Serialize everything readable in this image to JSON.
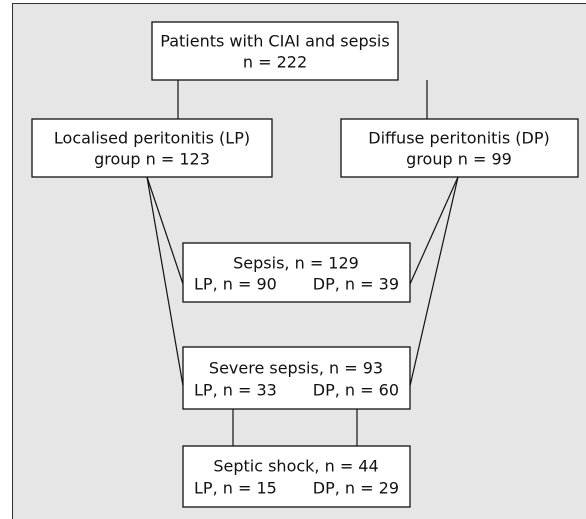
{
  "nodes": [
    {
      "lines": [
        "Patients with CIAI and sepsis",
        "n = 222"
      ]
    },
    {
      "lines": [
        "Localised peritonitis (LP)",
        "group n = 123"
      ]
    },
    {
      "lines": [
        "Diffuse peritonitis (DP)",
        "group n = 99"
      ]
    },
    {
      "title": "Sepsis, n = 129",
      "lp": "LP, n = 90",
      "dp": "DP, n = 39"
    },
    {
      "title": "Severe sepsis, n = 93",
      "lp": "LP, n = 33",
      "dp": "DP, n = 60"
    },
    {
      "title": "Septic shock, n = 44",
      "lp": "LP, n = 15",
      "dp": "DP, n = 29"
    }
  ]
}
